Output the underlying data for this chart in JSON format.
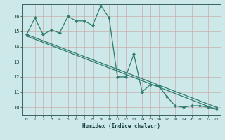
{
  "xlabel": "Humidex (Indice chaleur)",
  "background_color": "#cce8e8",
  "line_color": "#2e7b6e",
  "grid_color": "#aed4d4",
  "xlim": [
    -0.5,
    23.5
  ],
  "ylim": [
    9.5,
    16.8
  ],
  "yticks": [
    10,
    11,
    12,
    13,
    14,
    15,
    16
  ],
  "xticks": [
    0,
    1,
    2,
    3,
    4,
    5,
    6,
    7,
    8,
    9,
    10,
    11,
    12,
    13,
    14,
    15,
    16,
    17,
    18,
    19,
    20,
    21,
    22,
    23
  ],
  "line1_x": [
    0,
    1,
    2,
    3,
    4,
    5,
    6,
    7,
    8,
    9,
    10,
    11,
    12,
    13,
    14,
    15,
    16,
    17,
    18,
    19,
    20,
    21,
    22,
    23
  ],
  "line1_y": [
    14.8,
    15.9,
    14.8,
    15.1,
    14.9,
    16.0,
    15.7,
    15.7,
    15.4,
    16.7,
    15.9,
    12.0,
    12.0,
    13.5,
    11.0,
    11.5,
    11.4,
    10.7,
    10.1,
    10.0,
    10.1,
    10.1,
    10.0,
    9.9
  ],
  "line2_x": [
    0,
    23
  ],
  "line2_y": [
    14.8,
    10.0
  ],
  "line3_x": [
    0,
    23
  ],
  "line3_y": [
    14.7,
    9.85
  ]
}
